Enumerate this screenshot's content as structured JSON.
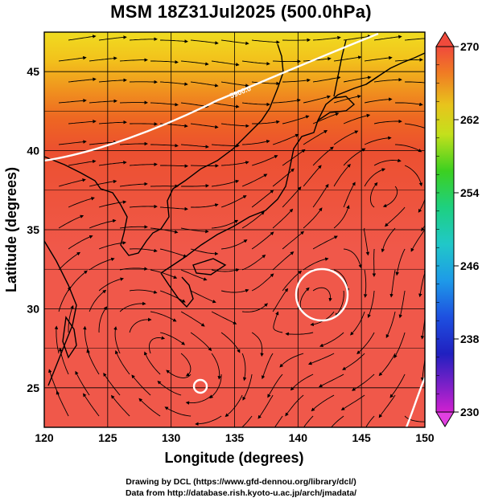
{
  "title": "MSM 18Z31Jul2025 (500.0hPa)",
  "x_axis": {
    "label": "Longitude (degrees)",
    "ticks": [
      "120",
      "125",
      "130",
      "135",
      "140",
      "145",
      "150"
    ]
  },
  "y_axis": {
    "label": "Latitude  (degrees)",
    "ticks": [
      "25",
      "30",
      "35",
      "40",
      "45"
    ]
  },
  "colorbar": {
    "ticks": [
      "270",
      "262",
      "254",
      "246",
      "238",
      "230"
    ],
    "min": 230,
    "max": 270
  },
  "contour_label": "5900.0",
  "credits": {
    "line1": "Drawing by DCL (https://www.gfd-dennou.org/library/dcl/)",
    "line2": "Data from http://database.rish.kyoto-u.ac.jp/arch/jmadata/"
  },
  "map_extent": {
    "lon": [
      120,
      150
    ],
    "lat": [
      22.5,
      47.5
    ]
  }
}
